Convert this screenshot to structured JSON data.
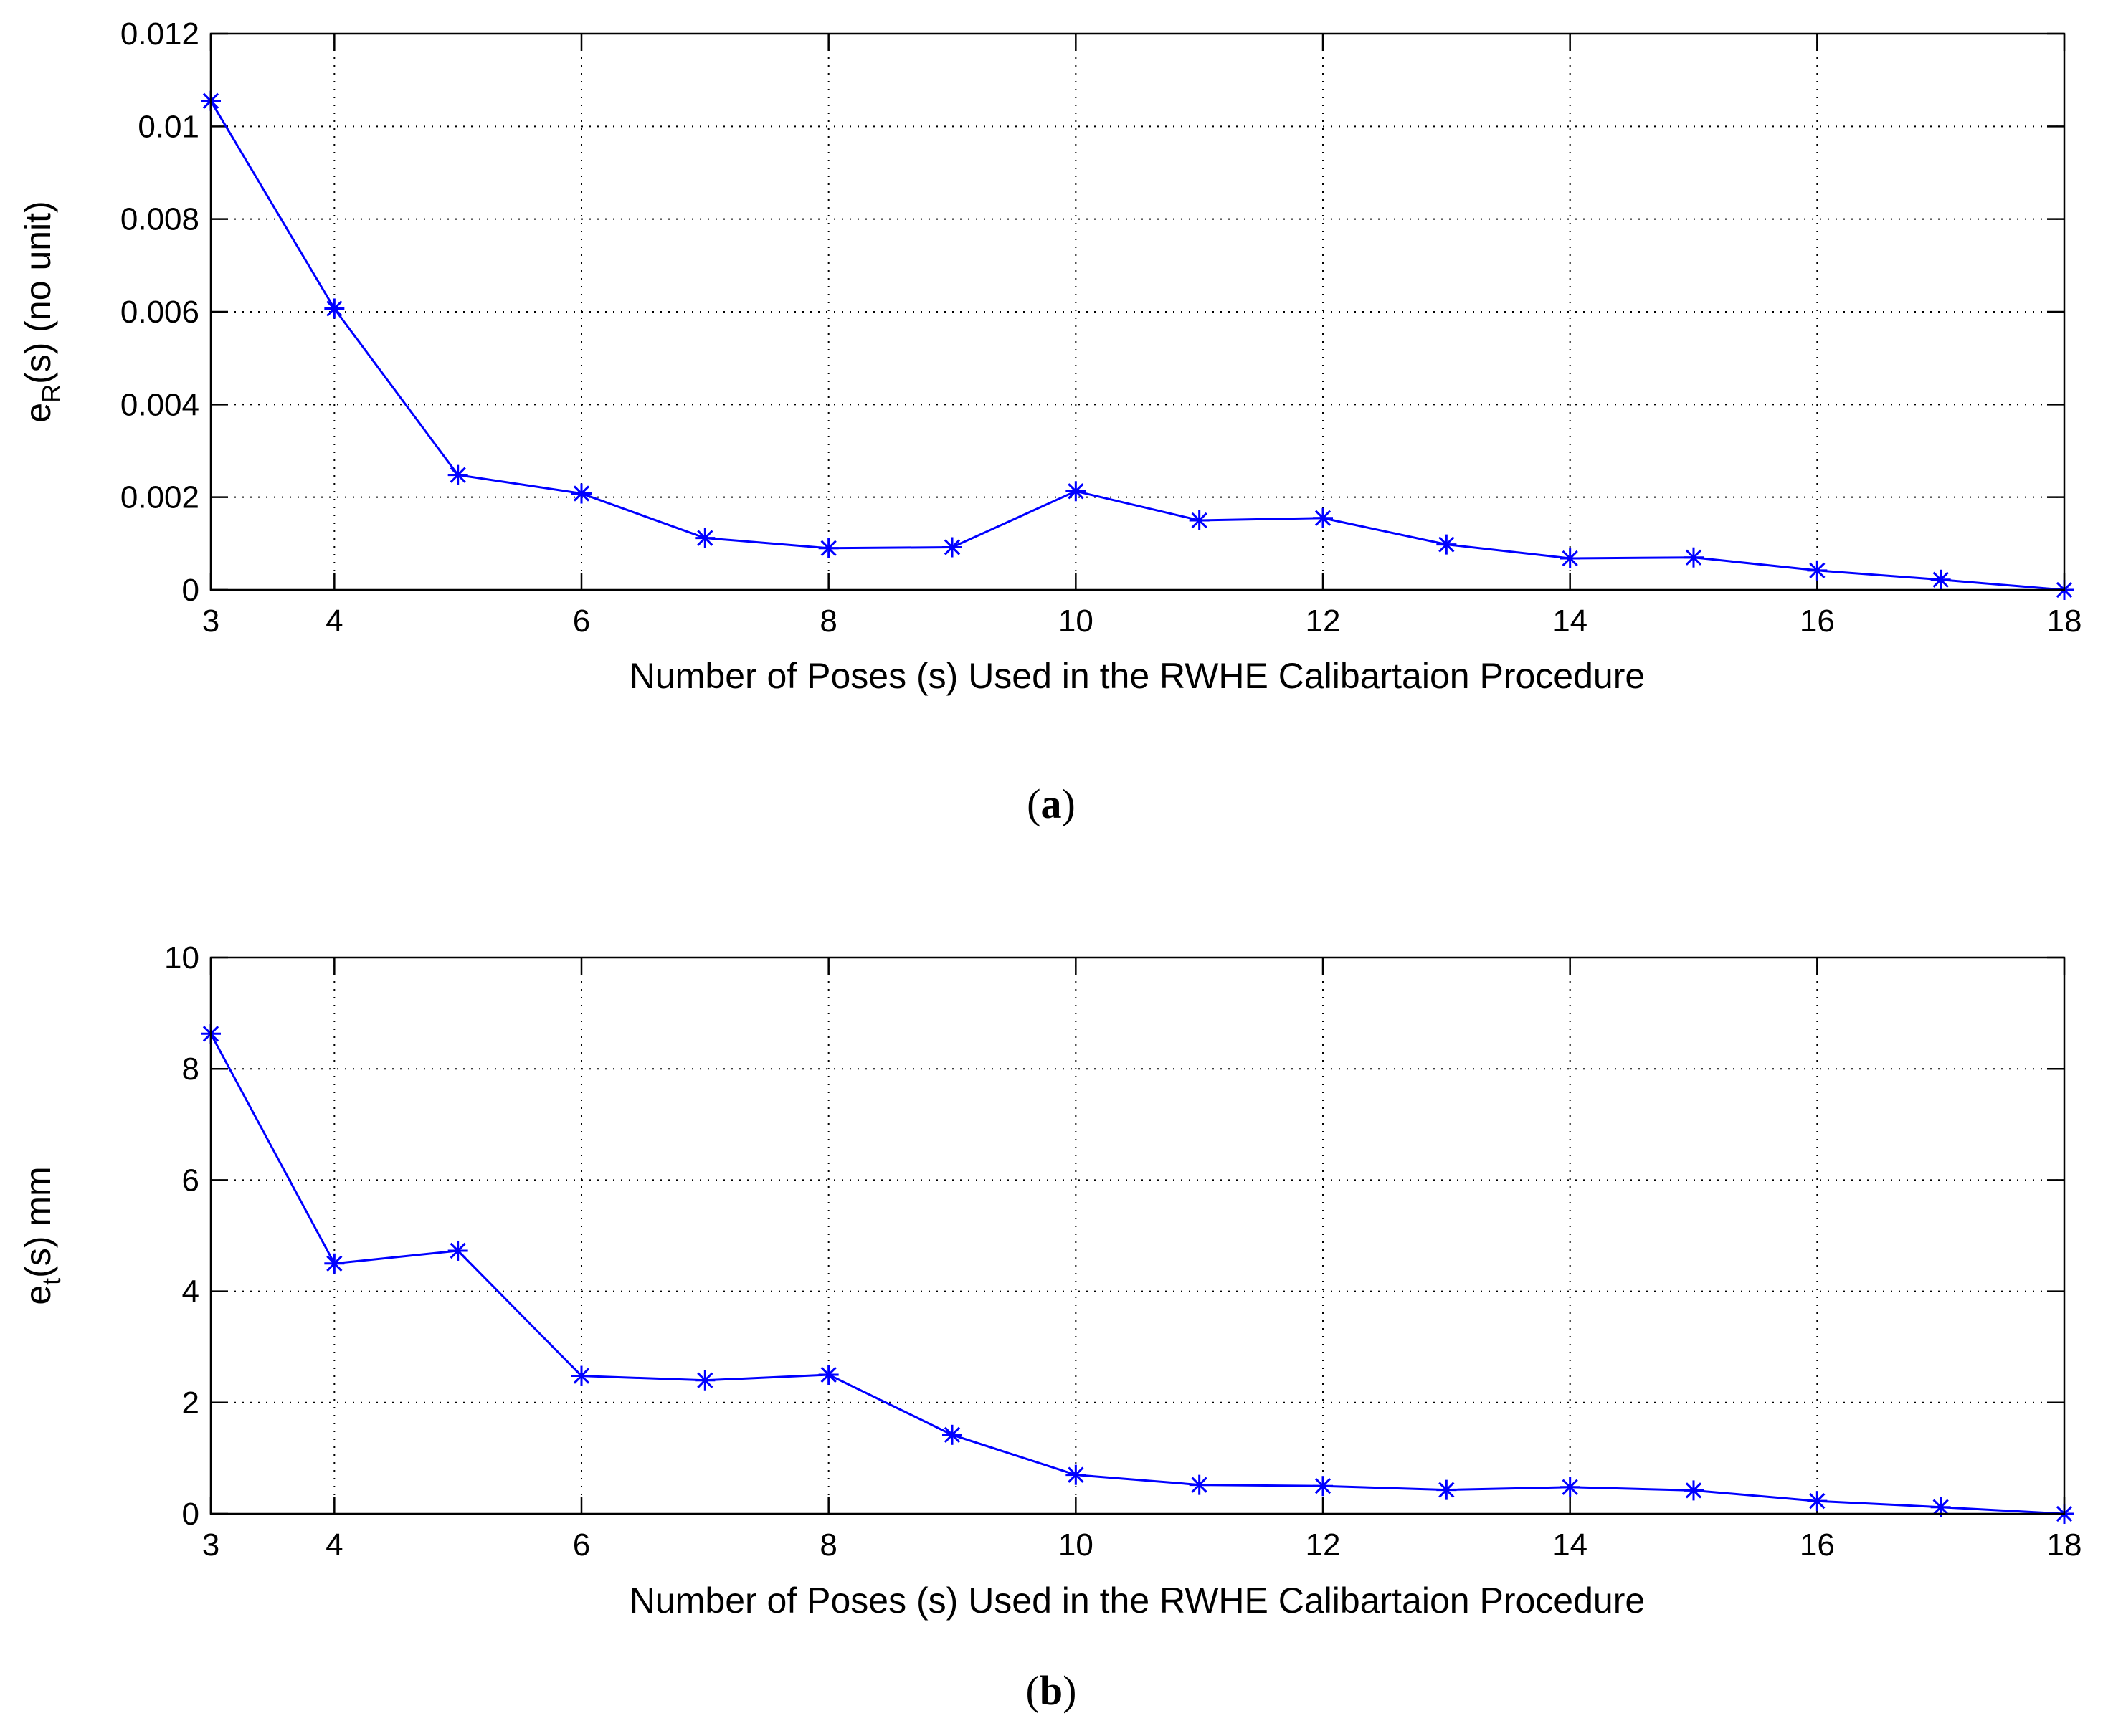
{
  "chart_data": [
    {
      "type": "line",
      "panel": "(a)",
      "caption_letter": "a",
      "title": "",
      "xlabel": "Number of Poses (s) Used in the RWHE Calibartaion Procedure",
      "ylabel": {
        "prefix": "e",
        "subscript": "R",
        "suffix": "(s) (no unit)"
      },
      "xlim": [
        3,
        18
      ],
      "ylim": [
        0,
        0.012
      ],
      "xticks": [
        3,
        4,
        6,
        8,
        10,
        12,
        14,
        16,
        18
      ],
      "xtick_labels": [
        "3",
        "4",
        "6",
        "8",
        "10",
        "12",
        "14",
        "16",
        "18"
      ],
      "yticks": [
        0,
        0.002,
        0.004,
        0.006,
        0.008,
        0.01,
        0.012
      ],
      "ytick_labels": [
        "0",
        "0.002",
        "0.004",
        "0.006",
        "0.008",
        "0.01",
        "0.012"
      ],
      "grid": true,
      "series": [
        {
          "name": "e_R(s)",
          "color": "#0000ff",
          "marker": "asterisk",
          "x": [
            3,
            4,
            5,
            6,
            7,
            8,
            9,
            10,
            11,
            12,
            13,
            14,
            15,
            16,
            17,
            18
          ],
          "y": [
            0.01055,
            0.00607,
            0.00248,
            0.00208,
            0.00112,
            0.0009,
            0.00092,
            0.00213,
            0.0015,
            0.00155,
            0.00098,
            0.00068,
            0.0007,
            0.00042,
            0.00022,
            0.0
          ]
        }
      ]
    },
    {
      "type": "line",
      "panel": "(b)",
      "caption_letter": "b",
      "title": "",
      "xlabel": "Number of Poses (s) Used in the RWHE Calibartaion Procedure",
      "ylabel": {
        "prefix": "e",
        "subscript": "t",
        "suffix": "(s) mm"
      },
      "xlim": [
        3,
        18
      ],
      "ylim": [
        0,
        10
      ],
      "xticks": [
        3,
        4,
        6,
        8,
        10,
        12,
        14,
        16,
        18
      ],
      "xtick_labels": [
        "3",
        "4",
        "6",
        "8",
        "10",
        "12",
        "14",
        "16",
        "18"
      ],
      "yticks": [
        0,
        2,
        4,
        6,
        8,
        10
      ],
      "ytick_labels": [
        "0",
        "2",
        "4",
        "6",
        "8",
        "10"
      ],
      "grid": true,
      "series": [
        {
          "name": "e_t(s)",
          "color": "#0000ff",
          "marker": "asterisk",
          "x": [
            3,
            4,
            5,
            6,
            7,
            8,
            9,
            10,
            11,
            12,
            13,
            14,
            15,
            16,
            17,
            18
          ],
          "y": [
            8.63,
            4.5,
            4.73,
            2.48,
            2.4,
            2.5,
            1.42,
            0.7,
            0.52,
            0.5,
            0.43,
            0.48,
            0.42,
            0.23,
            0.12,
            0.0
          ]
        }
      ]
    }
  ]
}
